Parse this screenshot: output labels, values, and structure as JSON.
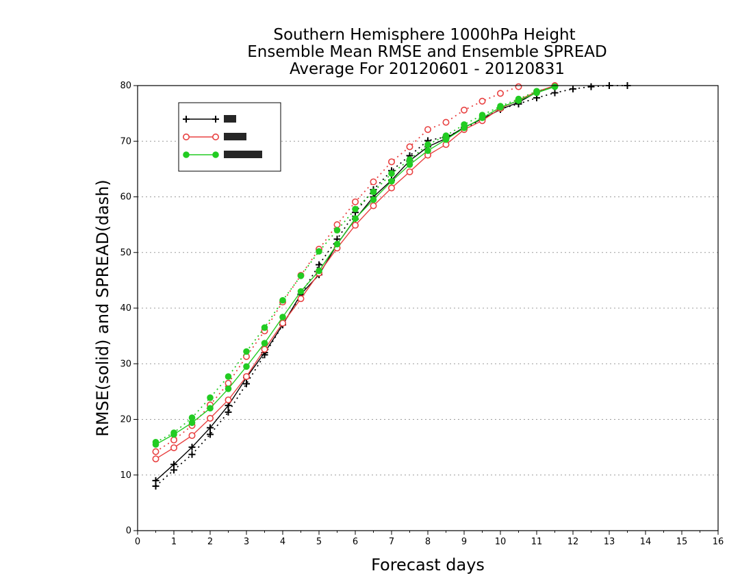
{
  "chart_data": {
    "type": "line",
    "title_lines": [
      "Southern Hemisphere 1000hPa Height",
      "Ensemble Mean RMSE and Ensemble SPREAD",
      "Average For 20120601 - 20120831"
    ],
    "xlabel": "Forecast days",
    "ylabel": "RMSE(solid) and SPREAD(dash)",
    "xlim": [
      0,
      16
    ],
    "ylim": [
      0,
      80
    ],
    "xticks": [
      0,
      1,
      2,
      3,
      4,
      5,
      6,
      7,
      8,
      9,
      10,
      11,
      12,
      13,
      14,
      15,
      16
    ],
    "yticks": [
      0,
      10,
      20,
      30,
      40,
      50,
      60,
      70,
      80
    ],
    "grid": "horizontal dotted",
    "legend_position": "top-left",
    "series": [
      {
        "color": "#000000",
        "marker": "plus",
        "rmse": {
          "x": [
            0.5,
            1,
            1.5,
            2,
            2.5,
            3,
            3.5,
            4,
            4.5,
            5,
            5.5,
            6,
            6.5,
            7,
            7.5,
            8,
            8.5,
            9,
            9.5,
            10,
            10.5,
            11,
            11.5
          ],
          "y": [
            9.0,
            11.9,
            15.0,
            18.5,
            22.5,
            27.5,
            32.0,
            37.0,
            42.5,
            46.0,
            51.5,
            56.0,
            60.0,
            63.0,
            66.5,
            69.0,
            70.5,
            72.5,
            74.0,
            75.7,
            77.0,
            78.8,
            80.0
          ]
        },
        "spread": {
          "x": [
            0.5,
            1,
            1.5,
            2,
            2.5,
            3,
            3.5,
            4,
            4.5,
            5,
            5.5,
            6,
            6.5,
            7,
            7.5,
            8,
            8.5,
            9,
            9.5,
            10,
            10.5,
            11,
            11.5,
            12,
            12.5,
            13,
            13.5
          ],
          "y": [
            8.0,
            10.9,
            13.7,
            17.3,
            21.3,
            26.4,
            31.6,
            37.0,
            42.4,
            47.8,
            52.4,
            57.2,
            61.3,
            64.7,
            67.4,
            70.1,
            70.8,
            72.2,
            74.0,
            75.8,
            76.7,
            77.8,
            78.7,
            79.4,
            79.8,
            80.0,
            80.0
          ]
        }
      },
      {
        "color": "#e84040",
        "marker": "open-circle",
        "rmse": {
          "x": [
            0.5,
            1,
            1.5,
            2,
            2.5,
            3,
            3.5,
            4,
            4.5,
            5,
            5.5,
            6,
            6.5,
            7,
            7.5,
            8,
            8.5,
            9,
            9.5,
            10,
            10.5,
            11,
            11.5
          ],
          "y": [
            12.9,
            14.9,
            17.1,
            20.2,
            23.5,
            27.7,
            32.6,
            37.3,
            41.7,
            46.3,
            50.8,
            54.9,
            58.4,
            61.6,
            64.5,
            67.5,
            69.4,
            72.1,
            73.7,
            75.9,
            77.4,
            78.9,
            80.0
          ]
        },
        "spread": {
          "x": [
            0.5,
            1,
            1.5,
            2,
            2.5,
            3,
            3.5,
            4,
            4.5,
            5,
            5.5,
            6,
            6.5,
            7,
            7.5,
            8,
            8.5,
            9,
            9.5,
            10,
            10.5
          ],
          "y": [
            14.2,
            16.3,
            18.9,
            22.6,
            26.5,
            31.3,
            35.9,
            41.1,
            45.9,
            50.6,
            55.0,
            59.1,
            62.7,
            66.3,
            69.0,
            72.1,
            73.4,
            75.6,
            77.2,
            78.6,
            79.8
          ]
        }
      },
      {
        "color": "#22cc22",
        "marker": "filled-circle",
        "rmse": {
          "x": [
            0.5,
            1,
            1.5,
            2,
            2.5,
            3,
            3.5,
            4,
            4.5,
            5,
            5.5,
            6,
            6.5,
            7,
            7.5,
            8,
            8.5,
            9,
            9.5,
            10,
            10.5,
            11,
            11.5
          ],
          "y": [
            15.5,
            17.3,
            19.4,
            22.0,
            25.5,
            29.5,
            33.7,
            38.4,
            43.0,
            46.7,
            51.5,
            56.1,
            59.5,
            62.8,
            65.8,
            68.3,
            70.3,
            72.4,
            74.2,
            76.1,
            77.3,
            78.7,
            79.8
          ]
        },
        "spread": {
          "x": [
            0.5,
            1,
            1.5,
            2,
            2.5,
            3,
            3.5,
            4,
            4.5,
            5,
            5.5,
            6,
            6.5,
            7,
            7.5,
            8,
            8.5,
            9,
            9.5,
            10,
            10.5,
            11,
            11.5
          ],
          "y": [
            15.9,
            17.6,
            20.3,
            23.9,
            27.7,
            32.2,
            36.5,
            41.4,
            45.8,
            50.2,
            54.0,
            57.8,
            60.9,
            64.2,
            66.7,
            69.4,
            71.0,
            73.0,
            74.7,
            76.3,
            77.6,
            79.0,
            79.8
          ]
        }
      }
    ]
  }
}
